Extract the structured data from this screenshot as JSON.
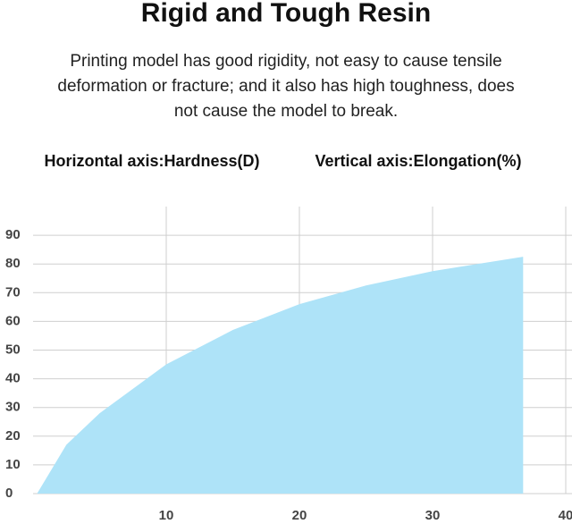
{
  "chart_data": {
    "type": "area",
    "title": "Rigid and Tough Resin",
    "subtitle": [
      "Printing model has good rigidity, not easy to cause tensile",
      "deformation or fracture; and it also has high toughness, does",
      "not cause the model to break."
    ],
    "x_axis_note": "Horizontal axis:Hardness(D)",
    "y_axis_note": "Vertical axis:Elongation(%)",
    "x": [
      0.3,
      2.5,
      5,
      10,
      15,
      20,
      25,
      30,
      36.8
    ],
    "values": [
      0,
      17,
      28,
      45,
      57,
      66,
      72.5,
      77.5,
      82.5
    ],
    "color": "#aee3f8",
    "xlim": [
      0,
      40
    ],
    "xticks": [
      10,
      20,
      30,
      40
    ],
    "ylim": [
      0,
      100
    ],
    "yticks": [
      0,
      10,
      20,
      30,
      40,
      50,
      60,
      70,
      80,
      90
    ],
    "grid": true
  }
}
